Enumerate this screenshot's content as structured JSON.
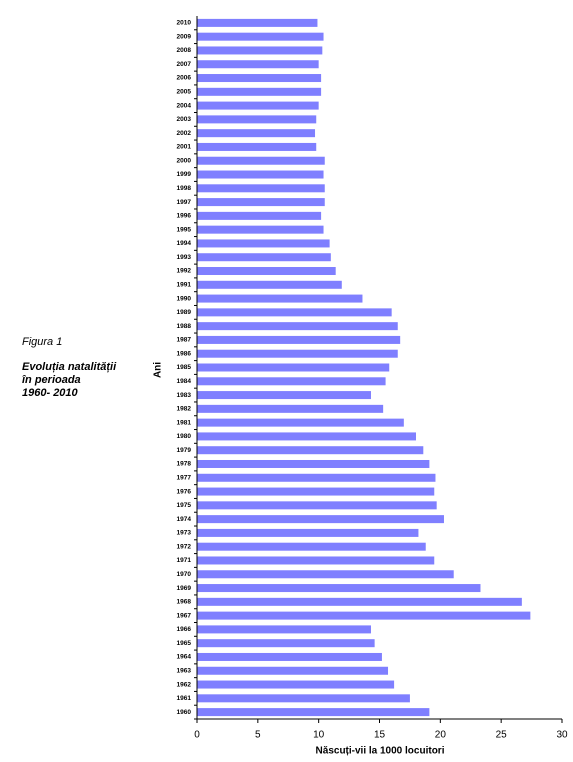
{
  "figure": {
    "label": "Figura 1",
    "caption": [
      "Evoluția natalității",
      "în perioada",
      "1960- 2010"
    ]
  },
  "chart_data": {
    "type": "barh",
    "x_label": "Născuți-vii la 1000 locuitori",
    "y_label": "Ani",
    "categories": [
      "1960",
      "1961",
      "1962",
      "1963",
      "1964",
      "1965",
      "1966",
      "1967",
      "1968",
      "1969",
      "1970",
      "1971",
      "1972",
      "1973",
      "1974",
      "1975",
      "1976",
      "1977",
      "1978",
      "1979",
      "1980",
      "1981",
      "1982",
      "1983",
      "1984",
      "1985",
      "1986",
      "1987",
      "1988",
      "1989",
      "1990",
      "1991",
      "1992",
      "1993",
      "1994",
      "1995",
      "1996",
      "1997",
      "1998",
      "1999",
      "2000",
      "2001",
      "2002",
      "2003",
      "2004",
      "2005",
      "2006",
      "2007",
      "2008",
      "2009",
      "2010"
    ],
    "values": [
      19.1,
      17.5,
      16.2,
      15.7,
      15.2,
      14.6,
      14.3,
      27.4,
      26.7,
      23.3,
      21.1,
      19.5,
      18.8,
      18.2,
      20.3,
      19.7,
      19.5,
      19.6,
      19.1,
      18.6,
      18.0,
      17.0,
      15.3,
      14.3,
      15.5,
      15.8,
      16.5,
      16.7,
      16.5,
      16.0,
      13.6,
      11.9,
      11.4,
      11.0,
      10.9,
      10.4,
      10.2,
      10.5,
      10.5,
      10.4,
      10.5,
      9.8,
      9.7,
      9.8,
      10.0,
      10.2,
      10.2,
      10.0,
      10.3,
      10.4,
      9.9
    ],
    "color": "#7f7fff",
    "xlim": [
      0,
      30
    ],
    "xticks": [
      0,
      5,
      10,
      15,
      20,
      25,
      30
    ],
    "grid": false
  }
}
